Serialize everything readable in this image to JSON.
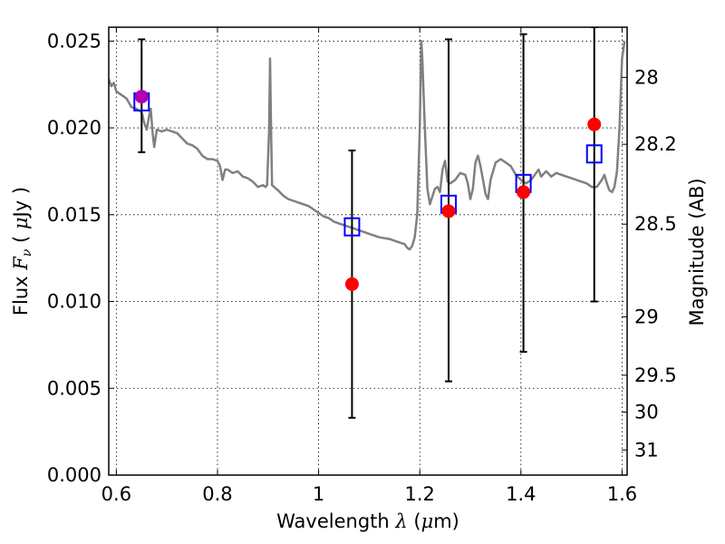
{
  "chart_data": {
    "type": "scatter",
    "xlabel": {
      "prefix": "Wavelength  ",
      "symbol": "λ",
      "suffix": " (",
      "unit_greek": "μ",
      "unit_rest": "m)"
    },
    "ylabel": {
      "prefix": "Flux  ",
      "symbol": "F",
      "subscript": "ν",
      "mid": "  ( ",
      "unit_greek": "μ",
      "unit_rest": "Jy )"
    },
    "y2label": "Magnitude (AB)",
    "xlim": [
      0.585,
      1.61
    ],
    "ylim": [
      0.0,
      0.0258
    ],
    "x_ticks": [
      {
        "value": 0.6,
        "label": "0.6"
      },
      {
        "value": 0.8,
        "label": "0.8"
      },
      {
        "value": 1.0,
        "label": "1"
      },
      {
        "value": 1.2,
        "label": "1.2"
      },
      {
        "value": 1.4,
        "label": "1.4"
      },
      {
        "value": 1.6,
        "label": "1.6"
      }
    ],
    "y_ticks": [
      {
        "value": 0.0,
        "label": "0.000"
      },
      {
        "value": 0.005,
        "label": "0.005"
      },
      {
        "value": 0.01,
        "label": "0.010"
      },
      {
        "value": 0.015,
        "label": "0.015"
      },
      {
        "value": 0.02,
        "label": "0.020"
      },
      {
        "value": 0.025,
        "label": "0.025"
      }
    ],
    "y2_ticks": [
      {
        "value": 28,
        "label": "28"
      },
      {
        "value": 28.2,
        "label": "28.2"
      },
      {
        "value": 28.5,
        "label": "28.5"
      },
      {
        "value": 29,
        "label": "29"
      },
      {
        "value": 29.5,
        "label": "29.5"
      },
      {
        "value": 30,
        "label": "30"
      },
      {
        "value": 31,
        "label": "31"
      }
    ],
    "grid": true,
    "series": [
      {
        "kind": "line",
        "color": "#808080",
        "points": [
          [
            0.585,
            0.0228
          ],
          [
            0.59,
            0.0224
          ],
          [
            0.595,
            0.0226
          ],
          [
            0.6,
            0.0221
          ],
          [
            0.61,
            0.0219
          ],
          [
            0.62,
            0.0217
          ],
          [
            0.63,
            0.0212
          ],
          [
            0.64,
            0.0211
          ],
          [
            0.65,
            0.0209
          ],
          [
            0.655,
            0.0203
          ],
          [
            0.66,
            0.0199
          ],
          [
            0.665,
            0.0207
          ],
          [
            0.668,
            0.0211
          ],
          [
            0.672,
            0.0196
          ],
          [
            0.675,
            0.0189
          ],
          [
            0.68,
            0.0199
          ],
          [
            0.69,
            0.0198
          ],
          [
            0.7,
            0.0199
          ],
          [
            0.71,
            0.0198
          ],
          [
            0.72,
            0.0197
          ],
          [
            0.73,
            0.0194
          ],
          [
            0.74,
            0.0191
          ],
          [
            0.75,
            0.019
          ],
          [
            0.76,
            0.0188
          ],
          [
            0.77,
            0.0184
          ],
          [
            0.78,
            0.0182
          ],
          [
            0.79,
            0.0182
          ],
          [
            0.8,
            0.0181
          ],
          [
            0.805,
            0.0178
          ],
          [
            0.81,
            0.017
          ],
          [
            0.815,
            0.0176
          ],
          [
            0.82,
            0.0176
          ],
          [
            0.83,
            0.0174
          ],
          [
            0.84,
            0.0175
          ],
          [
            0.85,
            0.0172
          ],
          [
            0.86,
            0.0171
          ],
          [
            0.87,
            0.0169
          ],
          [
            0.88,
            0.0166
          ],
          [
            0.89,
            0.0167
          ],
          [
            0.895,
            0.0166
          ],
          [
            0.898,
            0.0167
          ],
          [
            0.902,
            0.0198
          ],
          [
            0.904,
            0.024
          ],
          [
            0.906,
            0.02
          ],
          [
            0.908,
            0.0167
          ],
          [
            0.92,
            0.0164
          ],
          [
            0.93,
            0.0161
          ],
          [
            0.94,
            0.0159
          ],
          [
            0.95,
            0.0158
          ],
          [
            0.96,
            0.0157
          ],
          [
            0.97,
            0.0156
          ],
          [
            0.98,
            0.0155
          ],
          [
            0.99,
            0.0153
          ],
          [
            1.0,
            0.0151
          ],
          [
            1.01,
            0.0149
          ],
          [
            1.02,
            0.0148
          ],
          [
            1.03,
            0.0146
          ],
          [
            1.04,
            0.0145
          ],
          [
            1.05,
            0.0144
          ],
          [
            1.06,
            0.0143
          ],
          [
            1.07,
            0.0142
          ],
          [
            1.08,
            0.0141
          ],
          [
            1.09,
            0.014
          ],
          [
            1.1,
            0.0139
          ],
          [
            1.12,
            0.0137
          ],
          [
            1.14,
            0.0136
          ],
          [
            1.16,
            0.0134
          ],
          [
            1.17,
            0.0133
          ],
          [
            1.175,
            0.0131
          ],
          [
            1.18,
            0.013
          ],
          [
            1.185,
            0.0132
          ],
          [
            1.19,
            0.0137
          ],
          [
            1.195,
            0.015
          ],
          [
            1.2,
            0.02
          ],
          [
            1.203,
            0.025
          ],
          [
            1.205,
            0.024
          ],
          [
            1.21,
            0.02
          ],
          [
            1.215,
            0.0165
          ],
          [
            1.22,
            0.0156
          ],
          [
            1.23,
            0.0165
          ],
          [
            1.235,
            0.0166
          ],
          [
            1.24,
            0.0163
          ],
          [
            1.245,
            0.0176
          ],
          [
            1.25,
            0.0181
          ],
          [
            1.255,
            0.0169
          ],
          [
            1.26,
            0.0168
          ],
          [
            1.27,
            0.017
          ],
          [
            1.28,
            0.0174
          ],
          [
            1.29,
            0.0173
          ],
          [
            1.295,
            0.0168
          ],
          [
            1.3,
            0.0159
          ],
          [
            1.305,
            0.0165
          ],
          [
            1.31,
            0.018
          ],
          [
            1.315,
            0.0184
          ],
          [
            1.32,
            0.0178
          ],
          [
            1.325,
            0.017
          ],
          [
            1.33,
            0.0162
          ],
          [
            1.335,
            0.0159
          ],
          [
            1.34,
            0.017
          ],
          [
            1.35,
            0.018
          ],
          [
            1.36,
            0.0182
          ],
          [
            1.37,
            0.018
          ],
          [
            1.38,
            0.0178
          ],
          [
            1.39,
            0.0173
          ],
          [
            1.4,
            0.017
          ],
          [
            1.41,
            0.0168
          ],
          [
            1.42,
            0.017
          ],
          [
            1.43,
            0.0174
          ],
          [
            1.435,
            0.0176
          ],
          [
            1.44,
            0.0172
          ],
          [
            1.45,
            0.0175
          ],
          [
            1.46,
            0.0172
          ],
          [
            1.47,
            0.0174
          ],
          [
            1.48,
            0.0173
          ],
          [
            1.49,
            0.0172
          ],
          [
            1.5,
            0.0171
          ],
          [
            1.51,
            0.017
          ],
          [
            1.52,
            0.0169
          ],
          [
            1.53,
            0.0168
          ],
          [
            1.54,
            0.0166
          ],
          [
            1.55,
            0.0166
          ],
          [
            1.56,
            0.017
          ],
          [
            1.565,
            0.0173
          ],
          [
            1.57,
            0.0168
          ],
          [
            1.575,
            0.0164
          ],
          [
            1.58,
            0.0163
          ],
          [
            1.585,
            0.0166
          ],
          [
            1.59,
            0.0175
          ],
          [
            1.595,
            0.02
          ],
          [
            1.6,
            0.024
          ],
          [
            1.605,
            0.025
          ]
        ]
      },
      {
        "kind": "errorbar",
        "color": "#000000",
        "points": [
          {
            "x": 0.65,
            "low": 0.0186,
            "high": 0.0251
          },
          {
            "x": 1.066,
            "low": 0.0033,
            "high": 0.0187
          },
          {
            "x": 1.257,
            "low": 0.0054,
            "high": 0.0251
          },
          {
            "x": 1.405,
            "low": 0.0071,
            "high": 0.0254
          },
          {
            "x": 1.545,
            "low": 0.01,
            "high": 0.0258
          }
        ]
      },
      {
        "kind": "scatter",
        "marker": "open-square",
        "color": "#0000ff",
        "points": [
          [
            0.65,
            0.0215
          ],
          [
            1.066,
            0.0143
          ],
          [
            1.257,
            0.0156
          ],
          [
            1.405,
            0.0168
          ],
          [
            1.545,
            0.0185
          ]
        ]
      },
      {
        "kind": "scatter",
        "marker": "filled-circle",
        "color": "#ff0000",
        "points": [
          [
            0.65,
            0.0218
          ],
          [
            1.066,
            0.011
          ],
          [
            1.257,
            0.0152
          ],
          [
            1.405,
            0.0163
          ],
          [
            1.545,
            0.0202
          ]
        ]
      }
    ],
    "special_marker_colors": {
      "first_circle": "#b000b0"
    }
  }
}
